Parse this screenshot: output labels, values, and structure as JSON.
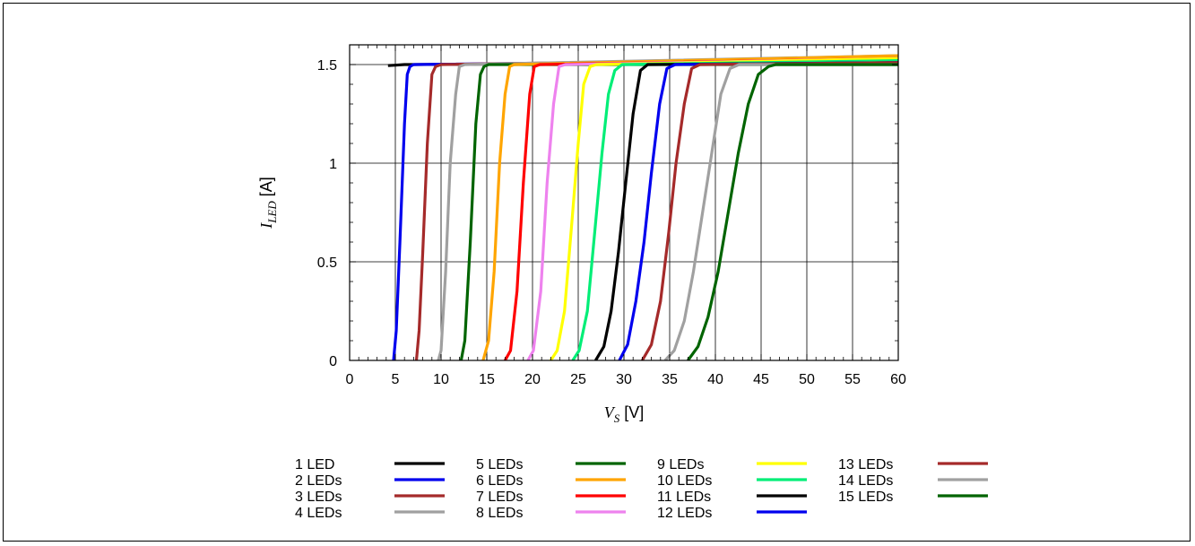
{
  "chart_data": {
    "type": "line",
    "xlabel_main": "V",
    "xlabel_sub": "S",
    "xlabel_unit": " [V]",
    "ylabel_main": "I",
    "ylabel_sub": "LED",
    "ylabel_unit": " [A]",
    "xlim": [
      0,
      60
    ],
    "ylim": [
      0,
      1.6
    ],
    "xticks": [
      0,
      5,
      10,
      15,
      20,
      25,
      30,
      35,
      40,
      45,
      50,
      55,
      60
    ],
    "yticks": [
      0,
      0.5,
      1,
      1.5
    ],
    "ytick_labels": [
      "0",
      "0.5",
      "1",
      "1.5"
    ],
    "grid": true,
    "legend_position": "bottom",
    "series": [
      {
        "name": "1 LED",
        "color": "#000000",
        "x": [
          4.2,
          5,
          6,
          7,
          60
        ],
        "y": [
          1.495,
          1.497,
          1.5,
          1.5,
          1.515
        ]
      },
      {
        "name": "2 LEDs",
        "color": "#0000ee",
        "x": [
          4.8,
          5.1,
          5.5,
          6,
          6.3,
          6.6,
          7,
          60
        ],
        "y": [
          0,
          0.15,
          0.6,
          1.2,
          1.45,
          1.49,
          1.5,
          1.525
        ]
      },
      {
        "name": "3 LEDs",
        "color": "#a52a2a",
        "x": [
          7.3,
          7.6,
          8,
          8.5,
          9,
          9.4,
          10,
          60
        ],
        "y": [
          0,
          0.15,
          0.55,
          1.1,
          1.45,
          1.49,
          1.5,
          1.535
        ]
      },
      {
        "name": "4 LEDs",
        "color": "#a0a0a0",
        "x": [
          9.7,
          10,
          10.5,
          11,
          11.6,
          12,
          12.6,
          60
        ],
        "y": [
          0,
          0.05,
          0.45,
          1.0,
          1.35,
          1.49,
          1.5,
          1.545
        ]
      },
      {
        "name": "5 LEDs",
        "color": "#006400",
        "x": [
          12.2,
          12.6,
          13.2,
          13.8,
          14.3,
          14.7,
          15.2,
          60
        ],
        "y": [
          0,
          0.1,
          0.6,
          1.2,
          1.45,
          1.49,
          1.5,
          1.5
        ]
      },
      {
        "name": "6 LEDs",
        "color": "#ffa500",
        "x": [
          14.6,
          15.2,
          15.8,
          16.4,
          17,
          17.5,
          18,
          60
        ],
        "y": [
          0,
          0.1,
          0.45,
          1.0,
          1.35,
          1.49,
          1.5,
          1.545
        ]
      },
      {
        "name": "7 LEDs",
        "color": "#ff0000",
        "x": [
          17,
          17.6,
          18.3,
          19,
          19.7,
          20.2,
          20.8,
          60
        ],
        "y": [
          0,
          0.05,
          0.35,
          0.9,
          1.35,
          1.49,
          1.5,
          1.53
        ]
      },
      {
        "name": "8 LEDs",
        "color": "#ee82ee",
        "x": [
          19.5,
          20.1,
          20.9,
          21.6,
          22.3,
          22.9,
          23.6,
          60
        ],
        "y": [
          0,
          0.05,
          0.35,
          0.9,
          1.3,
          1.49,
          1.5,
          1.53
        ]
      },
      {
        "name": "9 LEDs",
        "color": "#ffff00",
        "x": [
          22,
          22.7,
          23.5,
          24.3,
          25,
          25.6,
          26.3,
          27,
          60
        ],
        "y": [
          0,
          0.05,
          0.25,
          0.7,
          1.1,
          1.4,
          1.49,
          1.5,
          1.53
        ]
      },
      {
        "name": "10 LEDs",
        "color": "#00ee77",
        "x": [
          24.4,
          25.1,
          26,
          26.8,
          27.6,
          28.3,
          29,
          29.8,
          60
        ],
        "y": [
          0,
          0.05,
          0.25,
          0.65,
          1.05,
          1.35,
          1.47,
          1.5,
          1.52
        ]
      },
      {
        "name": "11 LEDs",
        "color": "#000000",
        "x": [
          26.9,
          27.8,
          28.6,
          29.4,
          30.2,
          31,
          31.8,
          32.6,
          60
        ],
        "y": [
          0,
          0.07,
          0.25,
          0.55,
          0.9,
          1.25,
          1.47,
          1.5,
          1.51
        ]
      },
      {
        "name": "12 LEDs",
        "color": "#0000ee",
        "x": [
          29.5,
          30.4,
          31.3,
          32.2,
          33,
          33.9,
          34.7,
          35.6,
          60
        ],
        "y": [
          0,
          0.08,
          0.3,
          0.6,
          0.95,
          1.3,
          1.48,
          1.5,
          1.51
        ]
      },
      {
        "name": "13 LEDs",
        "color": "#a52a2a",
        "x": [
          32,
          33,
          34,
          34.9,
          35.7,
          36.6,
          37.4,
          38.3,
          60
        ],
        "y": [
          0,
          0.08,
          0.3,
          0.65,
          1.0,
          1.3,
          1.48,
          1.5,
          1.51
        ]
      },
      {
        "name": "14 LEDs",
        "color": "#a0a0a0",
        "x": [
          34.5,
          35.5,
          36.6,
          37.6,
          38.6,
          39.6,
          40.6,
          41.6,
          42.6,
          60
        ],
        "y": [
          0,
          0.05,
          0.2,
          0.45,
          0.75,
          1.05,
          1.35,
          1.48,
          1.5,
          1.5
        ]
      },
      {
        "name": "15 LEDs",
        "color": "#006400",
        "x": [
          37,
          38.1,
          39.2,
          40.3,
          41.4,
          42.5,
          43.6,
          44.7,
          45.8,
          46.6,
          60
        ],
        "y": [
          0,
          0.07,
          0.22,
          0.45,
          0.75,
          1.05,
          1.3,
          1.45,
          1.49,
          1.5,
          1.5
        ]
      }
    ]
  }
}
